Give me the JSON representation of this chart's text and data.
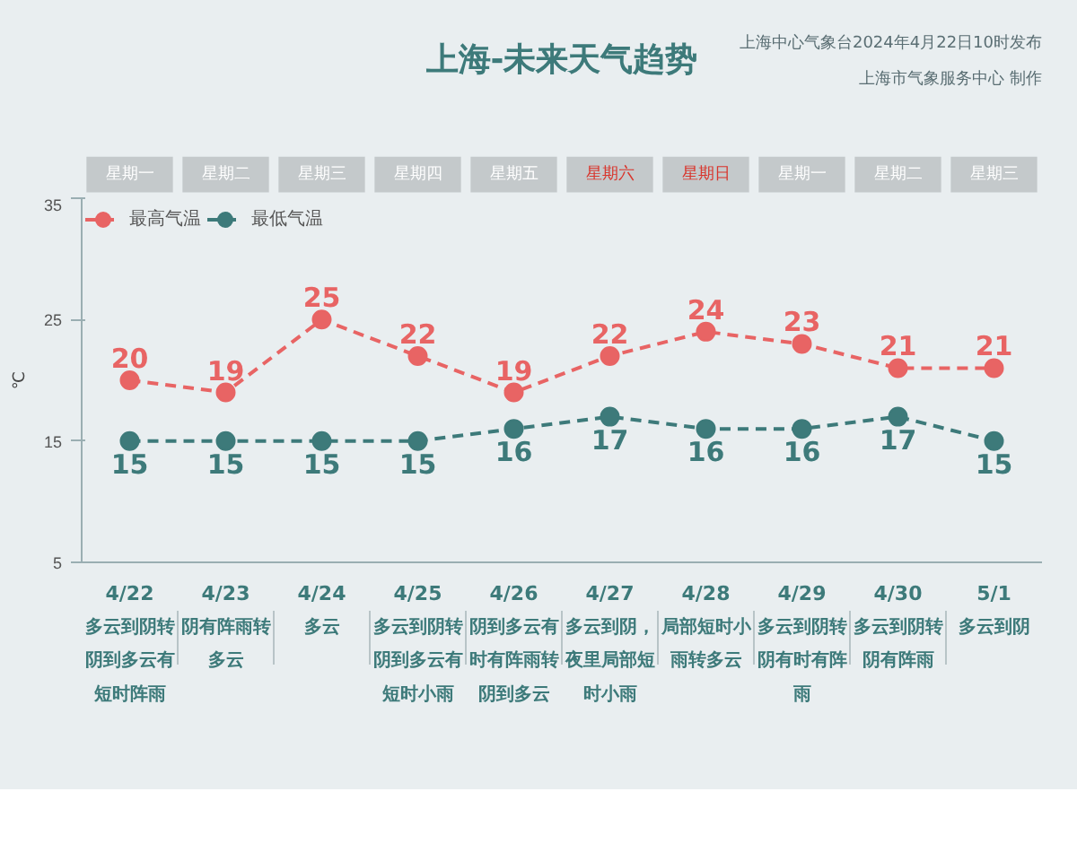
{
  "chart_data": {
    "type": "line",
    "title": "上海-未来天气趋势",
    "ylabel": "℃",
    "categories": [
      "4/22",
      "4/23",
      "4/24",
      "4/25",
      "4/26",
      "4/27",
      "4/28",
      "4/29",
      "4/30",
      "5/1"
    ],
    "series": [
      {
        "name": "最高气温",
        "color": "#e86464",
        "values": [
          20,
          19,
          25,
          22,
          19,
          22,
          24,
          23,
          21,
          21
        ]
      },
      {
        "name": "最低气温",
        "color": "#3d7a7a",
        "values": [
          15,
          15,
          15,
          15,
          16,
          17,
          16,
          16,
          17,
          15
        ]
      }
    ],
    "ylim": [
      5,
      35
    ],
    "yticks": [
      5,
      15,
      25,
      35
    ],
    "grid": false,
    "legend": "top left",
    "marker": "circle",
    "line_style": "dashed",
    "data_labels": true,
    "annotations": [
      "上海中心气象台2024年4月22日10时发布",
      "上海市气象服务中心 制作",
      "星期一",
      "星期二",
      "星期三",
      "星期四",
      "星期五",
      "星期六",
      "星期日",
      "星期一",
      "星期二",
      "星期三",
      "多云到阴转阴到多云有短时阵雨",
      "阴有阵雨转多云",
      "多云",
      "多云到阴转阴到多云有短时小雨",
      "阴到多云有时有阵雨转阴到多云",
      "多云到阴，夜里局部短时小雨",
      "局部短时小雨转多云",
      "多云到阴转阴有时有阵雨",
      "多云到阴转阴有阵雨",
      "多云到阴"
    ]
  }
}
